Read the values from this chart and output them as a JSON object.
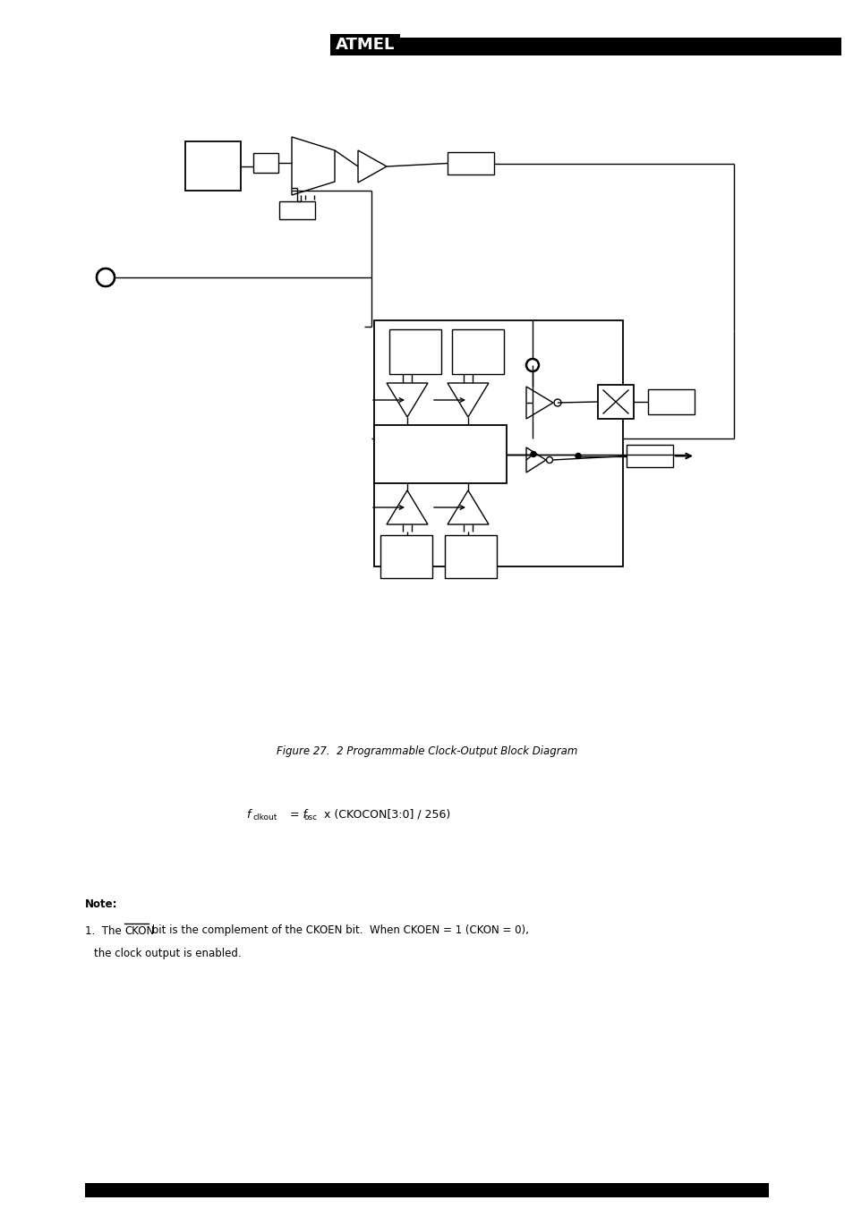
{
  "bg_color": "#ffffff",
  "fig_width": 9.54,
  "fig_height": 13.51,
  "dpi": 100,
  "title_italic": "Figure 27.  2 Programmable Clock-Output Block Diagram",
  "formula_parts": [
    "f",
    "clkout",
    " = f",
    "osc",
    " x (CKOCON[3:0] / 256)"
  ],
  "note_bold": "Note:",
  "note_line1": "1.  The CKON bit is the complement of the CKOEN bit.  When CKOEN = 1 (CKON = 0),",
  "note_line2": "     the clock output is enabled."
}
